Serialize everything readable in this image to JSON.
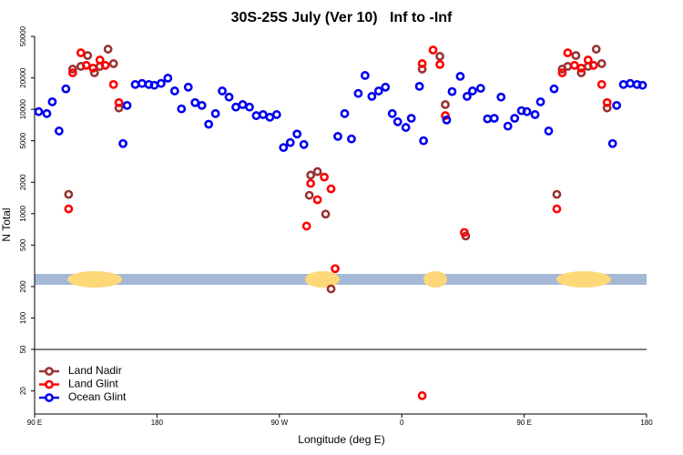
{
  "chart_data": {
    "type": "scatter",
    "title": "30S-25S July (Ver 10)   Inf to -Inf",
    "x_label": "Longitude (deg E)",
    "y_label": "N Total",
    "xlim": [
      90,
      540
    ],
    "xticks": [
      {
        "value": 90,
        "label": "90 E"
      },
      180,
      {
        "value": 270,
        "label": "90 W"
      },
      {
        "value": 360,
        "label": "0"
      },
      {
        "value": 450,
        "label": "90 E"
      },
      {
        "value": 540,
        "label": "180"
      }
    ],
    "ylim": [
      12,
      50000
    ],
    "yticks": [
      50000,
      20000,
      10000,
      5000,
      2000,
      1000,
      500,
      200,
      100,
      50,
      20
    ],
    "log_y": true,
    "separator_at": 50,
    "legend": "lower left",
    "series": [
      {
        "name": "Land Nadir",
        "color": "#993333",
        "x": [
          115,
          118,
          124,
          129,
          134,
          138,
          144,
          148,
          152,
          293,
          298,
          292,
          304,
          308,
          375,
          388,
          392,
          407,
          474,
          478,
          482,
          488,
          492,
          497,
          503,
          507,
          511
        ],
        "values": [
          1530,
          24300,
          25800,
          32800,
          22400,
          25800,
          37700,
          27400,
          10300,
          2340,
          2530,
          1500,
          990,
          190,
          24300,
          32200,
          11100,
          610,
          1530,
          24300,
          25800,
          32800,
          22400,
          25800,
          37700,
          27400,
          10300
        ]
      },
      {
        "name": "Land Glint",
        "color": "#ff0000",
        "x": [
          115,
          118,
          124,
          128,
          133,
          138,
          142,
          148,
          152,
          290,
          293,
          298,
          303,
          308,
          311,
          375,
          383,
          388,
          392,
          406,
          375,
          474,
          478,
          482,
          487,
          492,
          497,
          501,
          507,
          511
        ],
        "values": [
          1110,
          22400,
          34800,
          26400,
          24800,
          29700,
          26400,
          17300,
          11600,
          760,
          1950,
          1360,
          2240,
          1730,
          297,
          27400,
          37000,
          26900,
          8700,
          660,
          18,
          1110,
          22400,
          34800,
          26400,
          24800,
          29700,
          26400,
          17300,
          11600
        ]
      },
      {
        "name": "Ocean Glint",
        "color": "#0000ee",
        "x": [
          93,
          99,
          103,
          108,
          113,
          155,
          158,
          164,
          169,
          174,
          178,
          183,
          188,
          193,
          198,
          203,
          208,
          213,
          218,
          223,
          228,
          233,
          238,
          243,
          248,
          253,
          258,
          263,
          268,
          273,
          278,
          283,
          288,
          313,
          318,
          323,
          328,
          333,
          338,
          343,
          348,
          353,
          357,
          363,
          367,
          373,
          376,
          393,
          397,
          403,
          408,
          412,
          418,
          423,
          428,
          433,
          438,
          443,
          448,
          452,
          458,
          462,
          468,
          472,
          515,
          518,
          523,
          528,
          533,
          537
        ],
        "values": [
          9500,
          9100,
          11800,
          6200,
          15700,
          4700,
          10900,
          17300,
          17700,
          17300,
          17000,
          17700,
          19900,
          15000,
          10100,
          16300,
          11600,
          10900,
          7200,
          9100,
          15000,
          13100,
          10500,
          11100,
          10500,
          8700,
          8900,
          8400,
          8900,
          4300,
          4800,
          5800,
          4600,
          5500,
          9100,
          5200,
          14200,
          21100,
          13300,
          15000,
          16300,
          9100,
          7600,
          6700,
          8200,
          16600,
          5000,
          7900,
          14800,
          20700,
          13300,
          15000,
          15900,
          8100,
          8200,
          13100,
          6900,
          8200,
          9700,
          9500,
          8900,
          11800,
          6200,
          15700,
          4700,
          10900,
          17300,
          17700,
          17300,
          17000
        ]
      }
    ]
  }
}
